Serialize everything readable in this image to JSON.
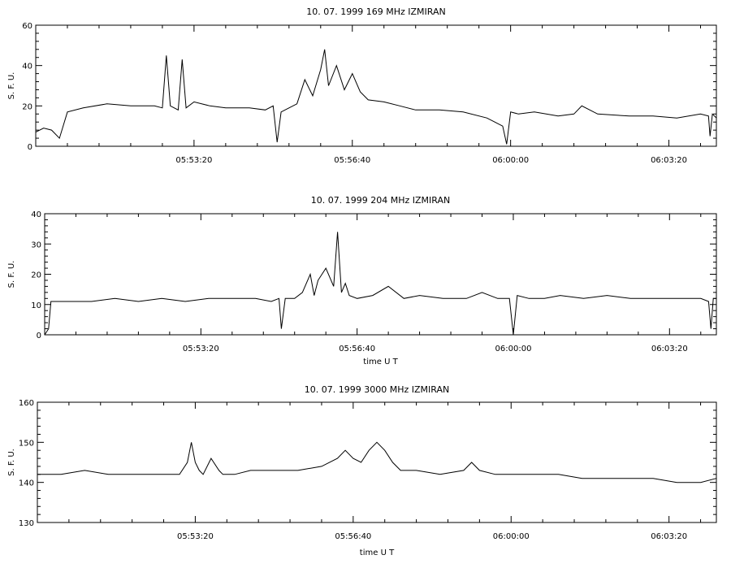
{
  "chart_data": [
    {
      "type": "line",
      "title": "10. 07. 1999    169 MHz    IZMIRAN",
      "ylabel": "S. F. U.",
      "xlabel": "",
      "xlim": [
        "05:50:00",
        "06:04:20"
      ],
      "ylim": [
        0,
        60
      ],
      "yticks": [
        0,
        20,
        40,
        60
      ],
      "xticks": [
        "05:53:20",
        "05:56:40",
        "06:00:00",
        "06:03:20"
      ],
      "grid": false,
      "series": [
        {
          "x": [
            "05:50:00",
            "05:50:10",
            "05:50:20",
            "05:50:30",
            "05:50:40",
            "05:51:00",
            "05:51:30",
            "05:52:00",
            "05:52:30",
            "05:52:40",
            "05:52:45",
            "05:52:50",
            "05:53:00",
            "05:53:05",
            "05:53:10",
            "05:53:20",
            "05:53:40",
            "05:54:00",
            "05:54:30",
            "05:54:50",
            "05:55:00",
            "05:55:05",
            "05:55:10",
            "05:55:20",
            "05:55:30",
            "05:55:40",
            "05:55:50",
            "05:56:00",
            "05:56:05",
            "05:56:10",
            "05:56:20",
            "05:56:30",
            "05:56:40",
            "05:56:50",
            "05:57:00",
            "05:57:20",
            "05:57:40",
            "05:58:00",
            "05:58:30",
            "05:59:00",
            "05:59:30",
            "05:59:40",
            "05:59:50",
            "05:59:55",
            "06:00:00",
            "06:00:10",
            "06:00:30",
            "06:01:00",
            "06:01:20",
            "06:01:30",
            "06:01:50",
            "06:02:30",
            "06:03:00",
            "06:03:30",
            "06:04:00",
            "06:04:10",
            "06:04:12",
            "06:04:15",
            "06:04:20"
          ],
          "y": [
            7,
            9,
            8,
            4,
            17,
            19,
            21,
            20,
            20,
            19,
            45,
            20,
            18,
            43,
            19,
            22,
            20,
            19,
            19,
            18,
            20,
            2,
            17,
            19,
            21,
            33,
            25,
            38,
            48,
            30,
            40,
            28,
            36,
            27,
            23,
            22,
            20,
            18,
            18,
            17,
            14,
            12,
            10,
            1,
            17,
            16,
            17,
            15,
            16,
            20,
            16,
            15,
            15,
            14,
            16,
            15,
            5,
            16,
            14
          ]
        }
      ]
    },
    {
      "type": "line",
      "title": "10. 07. 1999    204 MHz    IZMIRAN",
      "ylabel": "S. F. U.",
      "xlabel": "time  U T",
      "xlim": [
        "05:50:00",
        "06:04:20"
      ],
      "ylim": [
        0,
        40
      ],
      "yticks": [
        0,
        10,
        20,
        30,
        40
      ],
      "xticks": [
        "05:53:20",
        "05:56:40",
        "06:00:00",
        "06:03:20"
      ],
      "grid": false,
      "series": [
        {
          "x": [
            "05:50:00",
            "05:50:05",
            "05:50:08",
            "05:50:12",
            "05:50:30",
            "05:51:00",
            "05:51:30",
            "05:52:00",
            "05:52:30",
            "05:53:00",
            "05:53:30",
            "05:54:00",
            "05:54:30",
            "05:54:50",
            "05:55:00",
            "05:55:03",
            "05:55:08",
            "05:55:20",
            "05:55:30",
            "05:55:40",
            "05:55:45",
            "05:55:50",
            "05:56:00",
            "05:56:10",
            "05:56:15",
            "05:56:20",
            "05:56:25",
            "05:56:30",
            "05:56:40",
            "05:57:00",
            "05:57:20",
            "05:57:40",
            "05:58:00",
            "05:58:30",
            "05:59:00",
            "05:59:20",
            "05:59:40",
            "05:59:55",
            "06:00:00",
            "06:00:05",
            "06:00:20",
            "06:00:40",
            "06:01:00",
            "06:01:30",
            "06:02:00",
            "06:02:30",
            "06:03:00",
            "06:03:30",
            "06:04:00",
            "06:04:10",
            "06:04:13",
            "06:04:16",
            "06:04:20"
          ],
          "y": [
            0,
            2,
            11,
            11,
            11,
            11,
            12,
            11,
            12,
            11,
            12,
            12,
            12,
            11,
            12,
            2,
            12,
            12,
            14,
            20,
            13,
            18,
            22,
            16,
            34,
            14,
            17,
            13,
            12,
            13,
            16,
            12,
            13,
            12,
            12,
            14,
            12,
            12,
            0,
            13,
            12,
            12,
            13,
            12,
            13,
            12,
            12,
            12,
            12,
            11,
            2,
            12,
            12
          ]
        }
      ]
    },
    {
      "type": "line",
      "title": "10. 07. 1999    3000 MHz    IZMIRAN",
      "ylabel": "S. F. U.",
      "xlabel": "time  U T",
      "xlim": [
        "05:50:00",
        "06:04:20"
      ],
      "ylim": [
        130,
        160
      ],
      "yticks": [
        130,
        140,
        150,
        160
      ],
      "xticks": [
        "05:53:20",
        "05:56:40",
        "06:00:00",
        "06:03:20"
      ],
      "grid": false,
      "series": [
        {
          "x": [
            "05:50:00",
            "05:50:30",
            "05:51:00",
            "05:51:30",
            "05:52:00",
            "05:52:30",
            "05:53:00",
            "05:53:10",
            "05:53:15",
            "05:53:20",
            "05:53:25",
            "05:53:30",
            "05:53:40",
            "05:53:50",
            "05:53:55",
            "05:54:00",
            "05:54:10",
            "05:54:30",
            "05:55:00",
            "05:55:30",
            "05:56:00",
            "05:56:20",
            "05:56:30",
            "05:56:40",
            "05:56:50",
            "05:57:00",
            "05:57:10",
            "05:57:20",
            "05:57:30",
            "05:57:40",
            "05:58:00",
            "05:58:30",
            "05:59:00",
            "05:59:10",
            "05:59:20",
            "05:59:40",
            "06:00:00",
            "06:00:30",
            "06:01:00",
            "06:01:30",
            "06:02:00",
            "06:02:30",
            "06:03:00",
            "06:03:30",
            "06:04:00",
            "06:04:20"
          ],
          "y": [
            142,
            142,
            143,
            142,
            142,
            142,
            142,
            145,
            150,
            145,
            143,
            142,
            146,
            143,
            142,
            142,
            142,
            143,
            143,
            143,
            144,
            146,
            148,
            146,
            145,
            148,
            150,
            148,
            145,
            143,
            143,
            142,
            143,
            145,
            143,
            142,
            142,
            142,
            142,
            141,
            141,
            141,
            141,
            140,
            140,
            141
          ]
        }
      ]
    }
  ]
}
